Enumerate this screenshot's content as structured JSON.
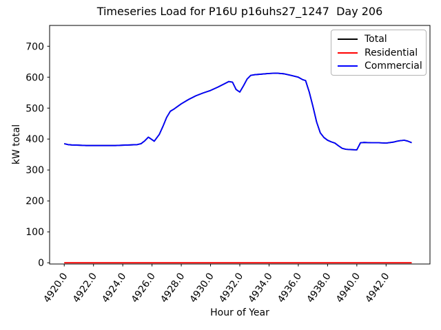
{
  "chart_data": {
    "type": "line",
    "title": "Timeseries Load for P16U p16uhs27_1247  Day 206",
    "xlabel": "Hour of Year",
    "ylabel": "kW total",
    "xlim": [
      4919.0,
      4945.0
    ],
    "ylim": [
      -4.0,
      767.3
    ],
    "grid": false,
    "legend": {
      "position": "upper right",
      "entries": [
        "Total",
        "Residential",
        "Commercial"
      ]
    },
    "xticks": [
      4920,
      4922,
      4924,
      4926,
      4928,
      4930,
      4932,
      4934,
      4936,
      4938,
      4940,
      4942
    ],
    "xtick_labels": [
      "4920.0",
      "4922.0",
      "4924.0",
      "4926.0",
      "4928.0",
      "4930.0",
      "4932.0",
      "4934.0",
      "4936.0",
      "4938.0",
      "4940.0",
      "4942.0"
    ],
    "xtick_rotation_deg": 55,
    "yticks": [
      0,
      100,
      200,
      300,
      400,
      500,
      600,
      700
    ],
    "ytick_labels": [
      "0",
      "100",
      "200",
      "300",
      "400",
      "500",
      "600",
      "700"
    ],
    "series": [
      {
        "name": "Total",
        "color": "#000000",
        "values_equal_series": "Commercial"
      },
      {
        "name": "Residential",
        "color": "#ff0000",
        "x": [
          4920.0,
          4943.75
        ],
        "y": [
          0,
          0
        ]
      },
      {
        "name": "Commercial",
        "color": "#0000ff",
        "x": [
          4920.0,
          4920.25,
          4920.5,
          4921.0,
          4921.5,
          4922.0,
          4922.5,
          4923.0,
          4923.5,
          4924.0,
          4924.5,
          4925.0,
          4925.25,
          4925.5,
          4925.75,
          4926.0,
          4926.15,
          4926.5,
          4926.75,
          4927.0,
          4927.25,
          4927.5,
          4928.0,
          4928.5,
          4929.0,
          4929.5,
          4930.0,
          4930.5,
          4931.0,
          4931.25,
          4931.5,
          4931.75,
          4932.0,
          4932.25,
          4932.5,
          4932.75,
          4933.0,
          4933.5,
          4934.0,
          4934.5,
          4935.0,
          4935.5,
          4936.0,
          4936.3,
          4936.5,
          4936.75,
          4937.0,
          4937.25,
          4937.5,
          4937.75,
          4938.0,
          4938.25,
          4938.5,
          4938.75,
          4939.0,
          4939.25,
          4939.5,
          4940.0,
          4940.25,
          4940.5,
          4941.0,
          4941.5,
          4942.0,
          4942.5,
          4942.75,
          4943.0,
          4943.25,
          4943.5,
          4943.75
        ],
        "y": [
          385,
          382,
          381,
          380,
          379,
          379,
          379,
          379,
          379,
          380,
          381,
          382,
          385,
          394,
          406,
          398,
          393,
          415,
          441,
          470,
          490,
          497,
          514,
          528,
          540,
          549,
          557,
          568,
          580,
          586,
          584,
          560,
          552,
          572,
          594,
          606,
          608,
          610,
          612,
          613,
          611,
          606,
          600,
          592,
          589,
          552,
          505,
          455,
          420,
          405,
          396,
          391,
          387,
          378,
          370,
          367,
          366,
          365,
          388,
          389,
          388,
          388,
          387,
          390,
          393,
          395,
          396,
          393,
          388
        ]
      }
    ]
  }
}
